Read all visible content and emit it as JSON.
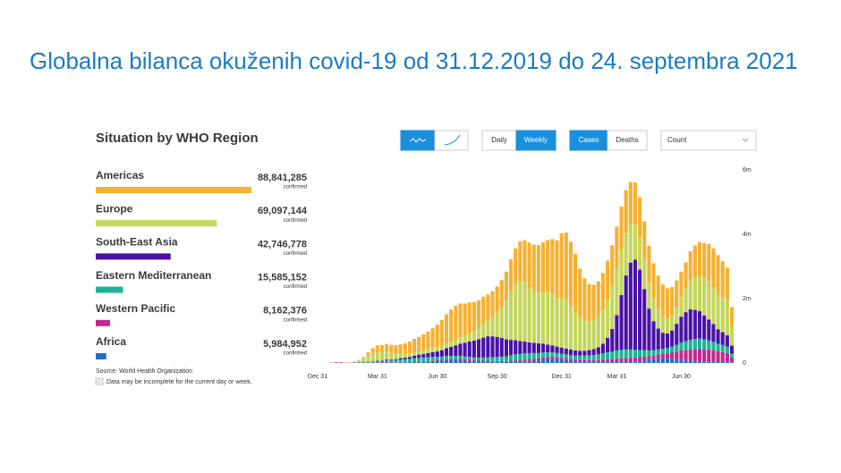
{
  "slide_title": "Globalna bilanca okuženih covid-19 od 31.12.2019 do 24. septembra 2021",
  "controls": {
    "daily": "Daily",
    "weekly": "Weekly",
    "cases": "Cases",
    "deaths": "Deaths",
    "metric": "Count"
  },
  "chart_data": {
    "type": "bar",
    "stacked": true,
    "title": "Situation by WHO Region",
    "value_sublabel": "confirmed",
    "source": "Source: World Health Organization",
    "note": "Data may be incomplete for the current day or week.",
    "ylim": [
      0,
      6
    ],
    "yticks": [
      0,
      {
        "value": 2,
        "label": "2m"
      },
      {
        "value": 4,
        "label": "4m"
      },
      {
        "value": 6,
        "label": "6m"
      }
    ],
    "categories": [
      "Dec 31",
      null,
      null,
      null,
      null,
      null,
      null,
      null,
      null,
      null,
      null,
      null,
      null,
      "Mar 31",
      null,
      null,
      null,
      null,
      null,
      null,
      null,
      null,
      null,
      null,
      null,
      null,
      "Jun 30",
      null,
      null,
      null,
      null,
      null,
      null,
      null,
      null,
      null,
      null,
      null,
      null,
      "Sep 30",
      null,
      null,
      null,
      null,
      null,
      null,
      null,
      null,
      null,
      null,
      null,
      null,
      null,
      "Dec 31",
      null,
      null,
      null,
      null,
      null,
      null,
      null,
      null,
      null,
      null,
      null,
      "Mar 31",
      null,
      null,
      null,
      null,
      null,
      null,
      null,
      null,
      null,
      null,
      null,
      null,
      null,
      "Jun 30",
      null,
      null,
      null,
      null,
      null,
      null,
      null,
      null,
      null,
      null,
      null
    ],
    "series": [
      {
        "name": "Americas",
        "color": "#f6b131",
        "total": 88841285,
        "total_label": "88,841,285",
        "values": [
          0,
          0,
          0,
          0,
          0,
          0,
          0,
          0,
          0,
          0.01,
          0.03,
          0.08,
          0.15,
          0.2,
          0.22,
          0.24,
          0.25,
          0.27,
          0.3,
          0.33,
          0.38,
          0.42,
          0.45,
          0.5,
          0.55,
          0.62,
          0.7,
          0.8,
          0.9,
          1.0,
          1.05,
          1.05,
          1.0,
          0.95,
          0.9,
          0.85,
          0.85,
          0.8,
          0.8,
          0.82,
          0.85,
          0.9,
          1.0,
          1.1,
          1.2,
          1.3,
          1.4,
          1.45,
          1.5,
          1.55,
          1.6,
          1.7,
          1.8,
          2.0,
          2.1,
          2.0,
          1.8,
          1.5,
          1.3,
          1.15,
          1.1,
          1.1,
          1.15,
          1.2,
          1.25,
          1.3,
          1.35,
          1.35,
          1.3,
          1.3,
          1.25,
          1.2,
          1.15,
          1.1,
          1.05,
          1.0,
          0.95,
          0.9,
          0.85,
          0.8,
          0.8,
          0.9,
          1.0,
          1.05,
          1.1,
          1.15,
          1.2,
          1.2,
          1.1,
          1.0,
          0.6
        ]
      },
      {
        "name": "Europe",
        "color": "#c4d65b",
        "total": 69097144,
        "total_label": "69,097,144",
        "values": [
          0,
          0,
          0,
          0,
          0,
          0,
          0,
          0.01,
          0.03,
          0.06,
          0.12,
          0.2,
          0.25,
          0.27,
          0.26,
          0.24,
          0.2,
          0.16,
          0.13,
          0.11,
          0.1,
          0.1,
          0.1,
          0.11,
          0.12,
          0.13,
          0.13,
          0.14,
          0.15,
          0.16,
          0.18,
          0.2,
          0.22,
          0.26,
          0.3,
          0.36,
          0.42,
          0.5,
          0.6,
          0.75,
          0.95,
          1.2,
          1.5,
          1.75,
          1.9,
          1.85,
          1.7,
          1.6,
          1.55,
          1.6,
          1.65,
          1.6,
          1.5,
          1.55,
          1.5,
          1.35,
          1.2,
          1.05,
          0.95,
          0.9,
          0.9,
          0.95,
          1.05,
          1.2,
          1.35,
          1.45,
          1.4,
          1.3,
          1.2,
          1.1,
          1.0,
          0.9,
          0.8,
          0.7,
          0.6,
          0.5,
          0.45,
          0.45,
          0.5,
          0.6,
          0.75,
          0.9,
          1.0,
          1.1,
          1.15,
          1.2,
          1.15,
          1.1,
          1.1,
          1.1,
          0.6
        ]
      },
      {
        "name": "South-East Asia",
        "color": "#4a12a6",
        "total": 42746778,
        "total_label": "42,746,778",
        "values": [
          0,
          0,
          0,
          0,
          0,
          0,
          0,
          0,
          0,
          0,
          0,
          0,
          0,
          0.01,
          0.01,
          0.02,
          0.02,
          0.03,
          0.04,
          0.05,
          0.06,
          0.08,
          0.1,
          0.11,
          0.13,
          0.15,
          0.17,
          0.2,
          0.24,
          0.28,
          0.33,
          0.38,
          0.43,
          0.48,
          0.52,
          0.57,
          0.62,
          0.65,
          0.65,
          0.62,
          0.58,
          0.53,
          0.48,
          0.44,
          0.4,
          0.37,
          0.34,
          0.32,
          0.3,
          0.27,
          0.24,
          0.22,
          0.2,
          0.19,
          0.18,
          0.17,
          0.16,
          0.15,
          0.15,
          0.16,
          0.18,
          0.22,
          0.3,
          0.45,
          0.7,
          1.1,
          1.7,
          2.3,
          2.7,
          2.8,
          2.5,
          1.9,
          1.3,
          0.9,
          0.65,
          0.5,
          0.45,
          0.5,
          0.65,
          0.8,
          0.9,
          0.95,
          0.9,
          0.85,
          0.75,
          0.65,
          0.55,
          0.45,
          0.4,
          0.35,
          0.25
        ]
      },
      {
        "name": "Eastern Mediterranean",
        "color": "#1fb396",
        "total": 15585152,
        "total_label": "15,585,152",
        "values": [
          0,
          0,
          0,
          0,
          0,
          0,
          0,
          0,
          0.01,
          0.02,
          0.03,
          0.04,
          0.05,
          0.05,
          0.05,
          0.06,
          0.06,
          0.07,
          0.08,
          0.09,
          0.1,
          0.11,
          0.12,
          0.12,
          0.12,
          0.11,
          0.1,
          0.1,
          0.1,
          0.09,
          0.09,
          0.09,
          0.09,
          0.09,
          0.09,
          0.1,
          0.1,
          0.11,
          0.12,
          0.13,
          0.14,
          0.15,
          0.17,
          0.19,
          0.2,
          0.2,
          0.19,
          0.18,
          0.17,
          0.16,
          0.15,
          0.14,
          0.13,
          0.13,
          0.12,
          0.12,
          0.12,
          0.13,
          0.14,
          0.15,
          0.16,
          0.18,
          0.2,
          0.22,
          0.24,
          0.26,
          0.27,
          0.27,
          0.26,
          0.24,
          0.22,
          0.2,
          0.18,
          0.17,
          0.16,
          0.16,
          0.17,
          0.19,
          0.22,
          0.25,
          0.28,
          0.3,
          0.32,
          0.32,
          0.3,
          0.28,
          0.26,
          0.24,
          0.22,
          0.2,
          0.12
        ]
      },
      {
        "name": "Western Pacific",
        "color": "#c2288f",
        "total": 8162376,
        "total_label": "8,162,376",
        "values": [
          0,
          0,
          0,
          0.01,
          0.02,
          0.02,
          0.01,
          0.01,
          0.01,
          0.01,
          0.01,
          0.01,
          0.01,
          0.02,
          0.02,
          0.02,
          0.02,
          0.01,
          0.01,
          0.01,
          0.01,
          0.01,
          0.01,
          0.01,
          0.01,
          0.02,
          0.02,
          0.02,
          0.03,
          0.04,
          0.04,
          0.05,
          0.04,
          0.04,
          0.04,
          0.03,
          0.03,
          0.03,
          0.03,
          0.03,
          0.03,
          0.03,
          0.03,
          0.04,
          0.04,
          0.05,
          0.05,
          0.06,
          0.06,
          0.07,
          0.07,
          0.07,
          0.07,
          0.06,
          0.06,
          0.05,
          0.05,
          0.05,
          0.05,
          0.05,
          0.05,
          0.05,
          0.06,
          0.07,
          0.08,
          0.09,
          0.1,
          0.11,
          0.12,
          0.12,
          0.12,
          0.12,
          0.11,
          0.11,
          0.12,
          0.14,
          0.17,
          0.2,
          0.25,
          0.3,
          0.32,
          0.35,
          0.37,
          0.38,
          0.38,
          0.37,
          0.35,
          0.32,
          0.3,
          0.27,
          0.15
        ]
      },
      {
        "name": "Africa",
        "color": "#1f6fc5",
        "total": 5984952,
        "total_label": "5,984,952",
        "values": [
          0,
          0,
          0,
          0,
          0,
          0,
          0,
          0,
          0,
          0,
          0,
          0,
          0,
          0,
          0,
          0.01,
          0.01,
          0.01,
          0.02,
          0.02,
          0.02,
          0.03,
          0.03,
          0.04,
          0.05,
          0.06,
          0.07,
          0.08,
          0.09,
          0.09,
          0.09,
          0.08,
          0.07,
          0.06,
          0.05,
          0.04,
          0.04,
          0.04,
          0.03,
          0.03,
          0.03,
          0.03,
          0.04,
          0.04,
          0.04,
          0.05,
          0.06,
          0.07,
          0.08,
          0.1,
          0.11,
          0.12,
          0.11,
          0.1,
          0.09,
          0.08,
          0.06,
          0.05,
          0.04,
          0.04,
          0.04,
          0.04,
          0.04,
          0.04,
          0.04,
          0.04,
          0.04,
          0.04,
          0.04,
          0.05,
          0.06,
          0.08,
          0.1,
          0.12,
          0.14,
          0.14,
          0.13,
          0.12,
          0.1,
          0.09,
          0.08,
          0.07,
          0.06,
          0.06,
          0.05,
          0.05,
          0.05,
          0.04,
          0.04,
          0.04,
          0.02
        ]
      }
    ]
  }
}
